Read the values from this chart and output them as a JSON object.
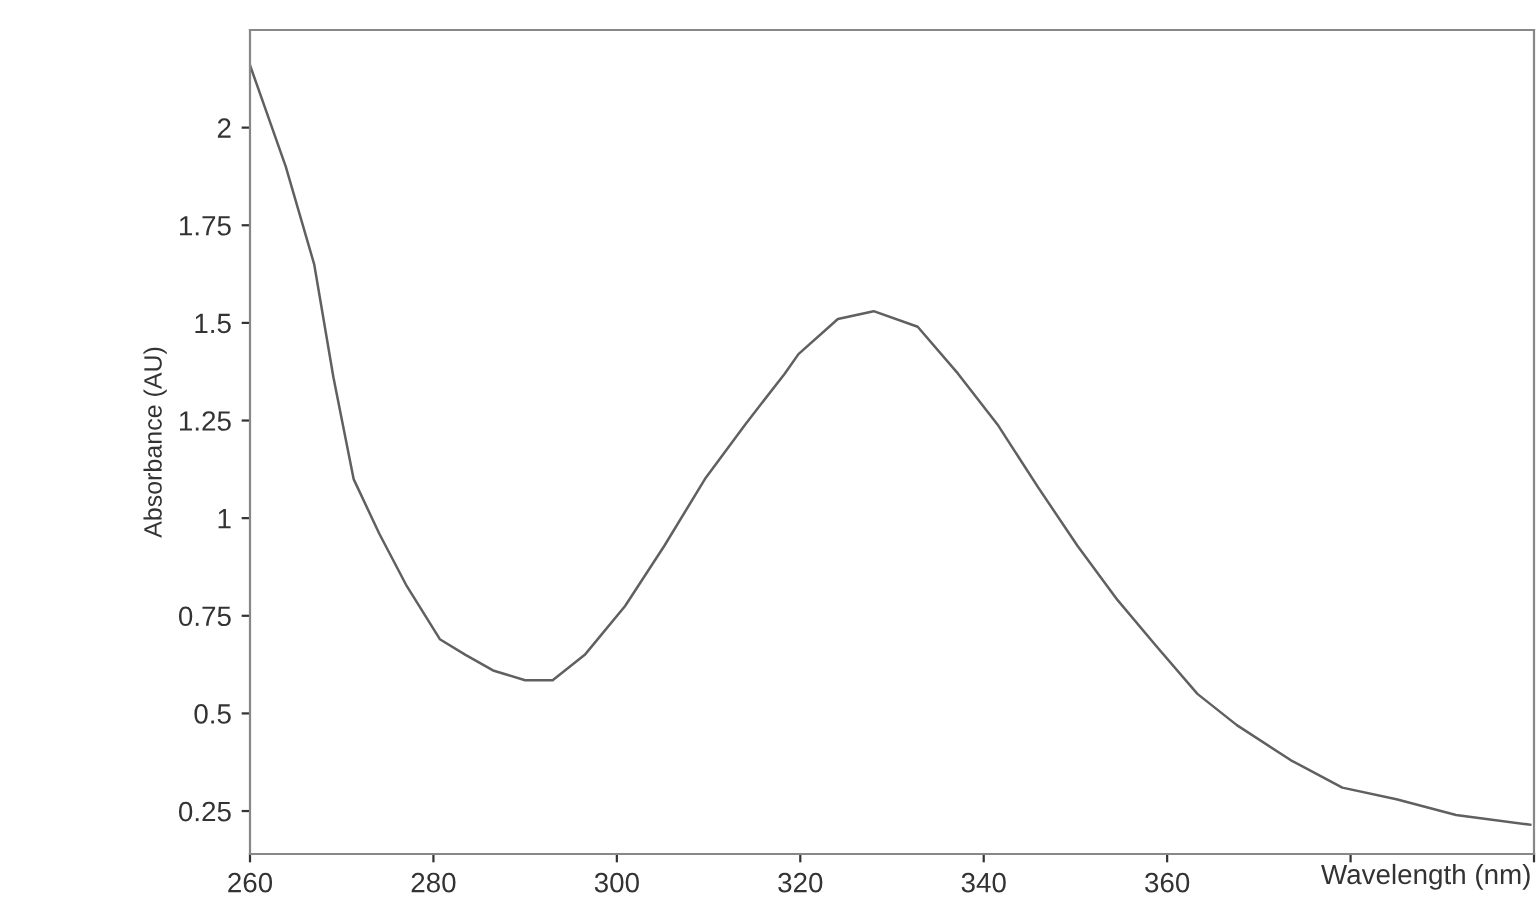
{
  "chart_data": {
    "type": "line",
    "xlabel": "Wavelength (nm)",
    "ylabel": "Absorbance (AU)",
    "xlim": [
      260,
      400
    ],
    "ylim": [
      0.14,
      2.25
    ],
    "xticks": [
      260,
      280,
      300,
      320,
      340,
      360,
      {
        "value": 380,
        "label": null
      },
      {
        "value": 400,
        "label": null
      }
    ],
    "yticks": [
      0.25,
      0.5,
      0.75,
      1,
      1.25,
      1.5,
      1.75,
      2
    ],
    "grid": false,
    "marker": "none",
    "line_style": "solid",
    "series": [
      {
        "color": "#606060",
        "x": [
          260,
          263.9,
          267,
          269.1,
          271.3,
          274.1,
          277,
          280.7,
          283.5,
          286.5,
          290,
          293,
          296.5,
          300.9,
          305.2,
          309.6,
          314,
          318.3,
          319.8,
          324.1,
          328,
          332.8,
          337.2,
          341.5,
          345.9,
          350.2,
          354.6,
          358.9,
          363.3,
          367.6,
          373.5,
          379.1,
          385,
          391.5,
          399.6
        ],
        "values": [
          2.16,
          1.9,
          1.65,
          1.36,
          1.1,
          0.96,
          0.83,
          0.69,
          0.65,
          0.61,
          0.585,
          0.585,
          0.65,
          0.775,
          0.93,
          1.1,
          1.24,
          1.37,
          1.42,
          1.51,
          1.53,
          1.49,
          1.37,
          1.24,
          1.08,
          0.93,
          0.79,
          0.67,
          0.55,
          0.47,
          0.38,
          0.31,
          0.28,
          0.24,
          0.215
        ]
      }
    ]
  }
}
